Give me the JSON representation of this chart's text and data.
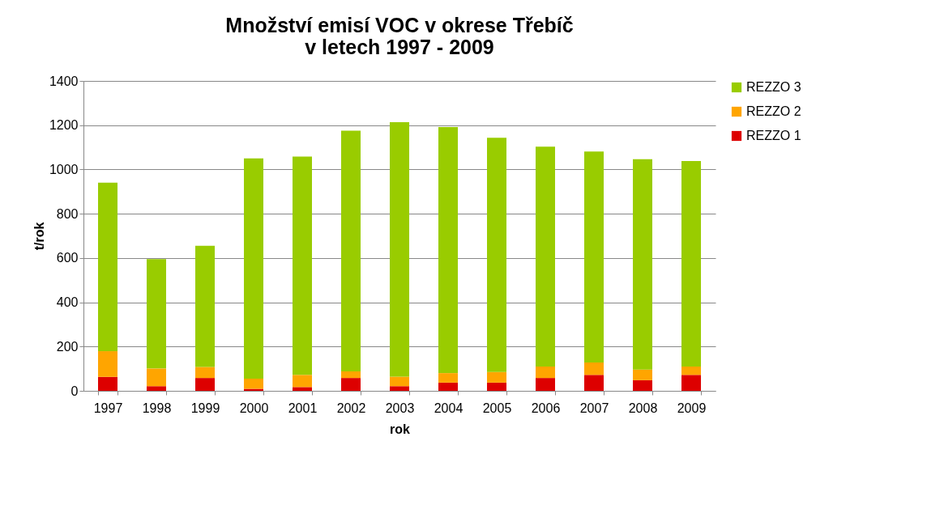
{
  "chart_data": {
    "type": "bar",
    "title": "Množství emisí VOC v okrese Třebíč\nv letech 1997 - 2009",
    "xlabel": "rok",
    "ylabel": "t/rok",
    "categories": [
      "1997",
      "1998",
      "1999",
      "2000",
      "2001",
      "2002",
      "2003",
      "2004",
      "2005",
      "2006",
      "2007",
      "2008",
      "2009"
    ],
    "stacked": true,
    "series": [
      {
        "name": "REZZO 1",
        "color": "#dd0000",
        "values": [
          63,
          21,
          58,
          9,
          17,
          58,
          21,
          37,
          37,
          58,
          72,
          48,
          72
        ]
      },
      {
        "name": "REZZO 2",
        "color": "#ffa500",
        "values": [
          116,
          80,
          50,
          46,
          55,
          30,
          43,
          43,
          48,
          52,
          56,
          48,
          38
        ]
      },
      {
        "name": "REZZO 3",
        "color": "#99cc00",
        "values": [
          761,
          494,
          547,
          995,
          986,
          1087,
          1150,
          1112,
          1058,
          993,
          953,
          950,
          928
        ]
      }
    ],
    "ylim": [
      0,
      1400
    ],
    "yticks": [
      0,
      200,
      400,
      600,
      800,
      1000,
      1200,
      1400
    ],
    "grid": "y",
    "legend": "right"
  }
}
